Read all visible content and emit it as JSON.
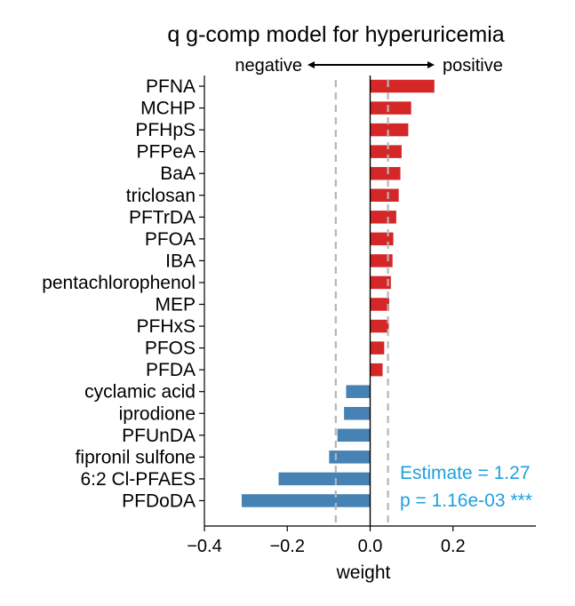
{
  "chart_data": {
    "type": "bar",
    "orientation": "horizontal",
    "title": "q g-comp model for hyperuricemia",
    "xlabel": "weight",
    "ylabel": "",
    "xlim": [
      -0.4,
      0.4
    ],
    "xticks": [
      -0.4,
      -0.2,
      0.0,
      0.2
    ],
    "xtick_labels": [
      "−0.4",
      "−0.2",
      "0.0",
      "0.2"
    ],
    "categories": [
      "PFNA",
      "MCHP",
      "PFHpS",
      "PFPeA",
      "BaA",
      "triclosan",
      "PFTrDA",
      "PFOA",
      "IBA",
      "pentachlorophenol",
      "MEP",
      "PFHxS",
      "PFOS",
      "PFDA",
      "cyclamic acid",
      "iprodione",
      "PFUnDA",
      "fipronil sulfone",
      "6:2 Cl-PFAES",
      "PFDoDA"
    ],
    "values": [
      0.155,
      0.099,
      0.092,
      0.076,
      0.073,
      0.069,
      0.063,
      0.056,
      0.054,
      0.05,
      0.046,
      0.045,
      0.034,
      0.03,
      -0.058,
      -0.063,
      -0.079,
      -0.099,
      -0.221,
      -0.31
    ],
    "colors": {
      "positive": "#d62728",
      "negative": "#4682b4",
      "reference_line": "#b5b5b5",
      "annotation": "#1ea0dc"
    },
    "reference_lines": [
      -0.083,
      0.043
    ],
    "direction_labels": {
      "negative": "negative",
      "positive": "positive"
    },
    "annotation": {
      "estimate": "Estimate = 1.27",
      "p_value": "p = 1.16e-03 ***"
    },
    "grid": false,
    "legend": "none"
  }
}
